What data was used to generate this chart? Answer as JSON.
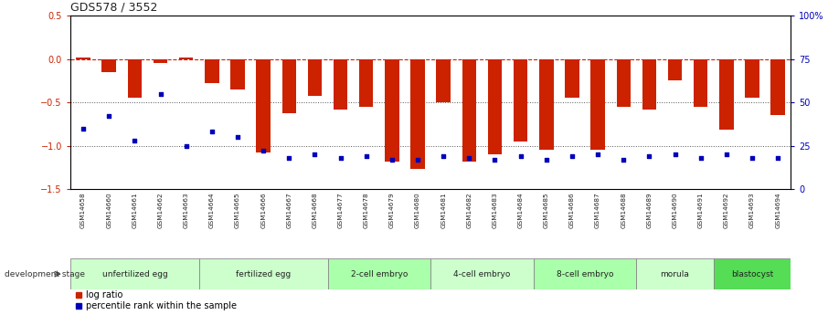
{
  "title": "GDS578 / 3552",
  "samples": [
    "GSM14658",
    "GSM14660",
    "GSM14661",
    "GSM14662",
    "GSM14663",
    "GSM14664",
    "GSM14665",
    "GSM14666",
    "GSM14667",
    "GSM14668",
    "GSM14677",
    "GSM14678",
    "GSM14679",
    "GSM14680",
    "GSM14681",
    "GSM14682",
    "GSM14683",
    "GSM14684",
    "GSM14685",
    "GSM14686",
    "GSM14687",
    "GSM14688",
    "GSM14689",
    "GSM14690",
    "GSM14691",
    "GSM14692",
    "GSM14693",
    "GSM14694"
  ],
  "log_ratio": [
    0.02,
    -0.15,
    -0.45,
    -0.05,
    0.02,
    -0.28,
    -0.35,
    -1.08,
    -0.62,
    -0.42,
    -0.58,
    -0.55,
    -1.18,
    -1.27,
    -0.5,
    -1.18,
    -1.1,
    -0.95,
    -1.05,
    -0.45,
    -1.05,
    -0.55,
    -0.58,
    -0.25,
    -0.55,
    -0.82,
    -0.45,
    -0.65
  ],
  "percentile_rank": [
    35,
    42,
    28,
    55,
    25,
    33,
    30,
    22,
    18,
    20,
    18,
    19,
    17,
    17,
    19,
    18,
    17,
    19,
    17,
    19,
    20,
    17,
    19,
    20,
    18,
    20,
    18,
    18
  ],
  "stage_groups": [
    {
      "label": "unfertilized egg",
      "start": 0,
      "end": 5,
      "color": "#ccffcc"
    },
    {
      "label": "fertilized egg",
      "start": 5,
      "end": 10,
      "color": "#ccffcc"
    },
    {
      "label": "2-cell embryo",
      "start": 10,
      "end": 14,
      "color": "#aaffaa"
    },
    {
      "label": "4-cell embryo",
      "start": 14,
      "end": 18,
      "color": "#ccffcc"
    },
    {
      "label": "8-cell embryo",
      "start": 18,
      "end": 22,
      "color": "#aaffaa"
    },
    {
      "label": "morula",
      "start": 22,
      "end": 25,
      "color": "#ccffcc"
    },
    {
      "label": "blastocyst",
      "start": 25,
      "end": 28,
      "color": "#55dd55"
    }
  ],
  "bar_color": "#cc2200",
  "dot_color": "#0000bb",
  "hline_color": "#cc2200",
  "dotted_line_color": "#555555",
  "ylim": [
    -1.5,
    0.5
  ],
  "yticks_left": [
    -1.5,
    -1.0,
    -0.5,
    0.0,
    0.5
  ],
  "y2ticks": [
    0,
    25,
    50,
    75,
    100
  ],
  "background_color": "#ffffff",
  "gray_bg": "#cccccc"
}
